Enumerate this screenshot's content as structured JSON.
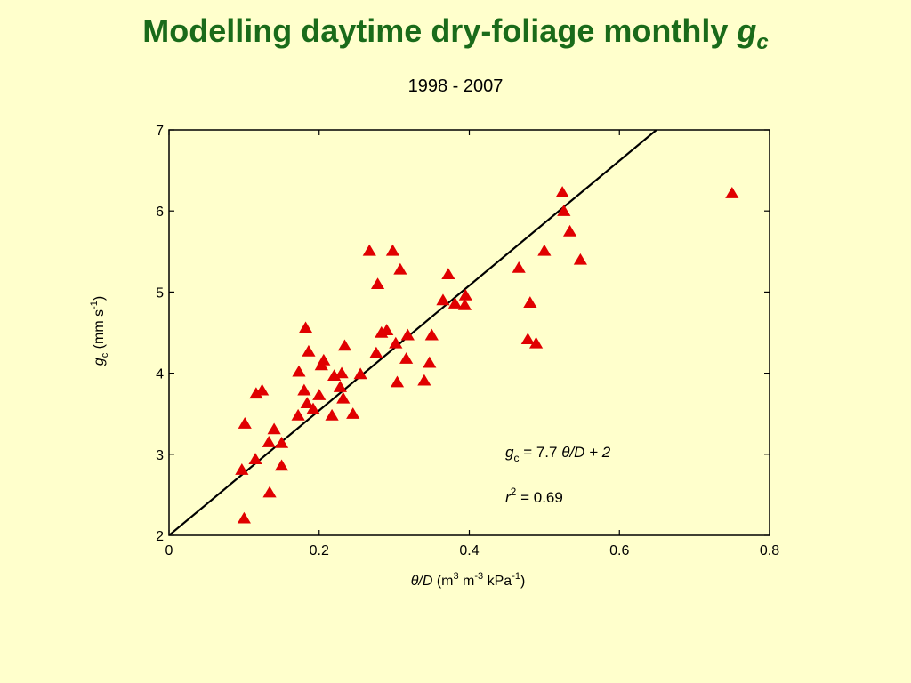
{
  "page": {
    "title_text": "Modelling daytime dry-foliage monthly ",
    "title_symbol": "g",
    "title_subscript": "c",
    "subtitle": "1998 - 2007"
  },
  "colors": {
    "background": "#ffffcc",
    "title": "#1a6b1a",
    "marker": "#e00000",
    "line": "#000000"
  },
  "chart_data": {
    "type": "scatter",
    "title": "1998 - 2007",
    "xlabel": {
      "sym": "θ",
      "slash_D": "/D",
      "units_open": " (m",
      "sup1": "3",
      "mid": " m",
      "sup2": "-3",
      "kpa": " kPa",
      "sup3": "-1",
      "close": ")"
    },
    "ylabel": {
      "sym": "g",
      "sub": "c",
      "units_open": " (mm s",
      "sup": "-1",
      "close": ")"
    },
    "xlim": [
      0,
      0.8
    ],
    "ylim": [
      2,
      7
    ],
    "xticks": [
      0,
      0.2,
      0.4,
      0.6,
      0.8
    ],
    "xtick_labels": [
      "0",
      "0.2",
      "0.4",
      "0.6",
      "0.8"
    ],
    "yticks": [
      2,
      3,
      4,
      5,
      6,
      7
    ],
    "ytick_labels": [
      "2",
      "3",
      "4",
      "5",
      "6",
      "7"
    ],
    "regression": {
      "slope": 7.7,
      "intercept": 2
    },
    "equation": {
      "sym": "g",
      "sub": "c",
      "eq_text": " = 7.7 ",
      "theta": "θ",
      "rest": "/D + 2"
    },
    "r2": {
      "sym": "r",
      "sup": "2",
      "value": " = 0.69"
    },
    "legend_position": "lower-right",
    "points": [
      [
        0.097,
        2.8
      ],
      [
        0.1,
        2.2
      ],
      [
        0.101,
        3.37
      ],
      [
        0.115,
        2.93
      ],
      [
        0.116,
        3.74
      ],
      [
        0.124,
        3.78
      ],
      [
        0.133,
        3.14
      ],
      [
        0.134,
        2.52
      ],
      [
        0.14,
        3.3
      ],
      [
        0.15,
        2.85
      ],
      [
        0.15,
        3.13
      ],
      [
        0.172,
        3.47
      ],
      [
        0.173,
        4.01
      ],
      [
        0.18,
        3.78
      ],
      [
        0.182,
        4.55
      ],
      [
        0.184,
        3.62
      ],
      [
        0.186,
        4.26
      ],
      [
        0.192,
        3.55
      ],
      [
        0.2,
        3.72
      ],
      [
        0.203,
        4.09
      ],
      [
        0.206,
        4.15
      ],
      [
        0.217,
        3.47
      ],
      [
        0.22,
        3.96
      ],
      [
        0.228,
        3.82
      ],
      [
        0.23,
        3.99
      ],
      [
        0.232,
        3.68
      ],
      [
        0.234,
        4.33
      ],
      [
        0.245,
        3.49
      ],
      [
        0.255,
        3.98
      ],
      [
        0.267,
        5.5
      ],
      [
        0.276,
        4.24
      ],
      [
        0.278,
        5.09
      ],
      [
        0.283,
        4.49
      ],
      [
        0.29,
        4.52
      ],
      [
        0.298,
        5.5
      ],
      [
        0.302,
        4.36
      ],
      [
        0.304,
        3.88
      ],
      [
        0.308,
        5.27
      ],
      [
        0.316,
        4.17
      ],
      [
        0.318,
        4.46
      ],
      [
        0.34,
        3.9
      ],
      [
        0.347,
        4.12
      ],
      [
        0.35,
        4.46
      ],
      [
        0.365,
        4.89
      ],
      [
        0.372,
        5.21
      ],
      [
        0.381,
        4.85
      ],
      [
        0.394,
        4.83
      ],
      [
        0.395,
        4.95
      ],
      [
        0.466,
        5.29
      ],
      [
        0.478,
        4.41
      ],
      [
        0.481,
        4.86
      ],
      [
        0.489,
        4.36
      ],
      [
        0.5,
        5.5
      ],
      [
        0.524,
        6.22
      ],
      [
        0.526,
        5.99
      ],
      [
        0.534,
        5.74
      ],
      [
        0.548,
        5.39
      ],
      [
        0.75,
        6.21
      ]
    ]
  }
}
